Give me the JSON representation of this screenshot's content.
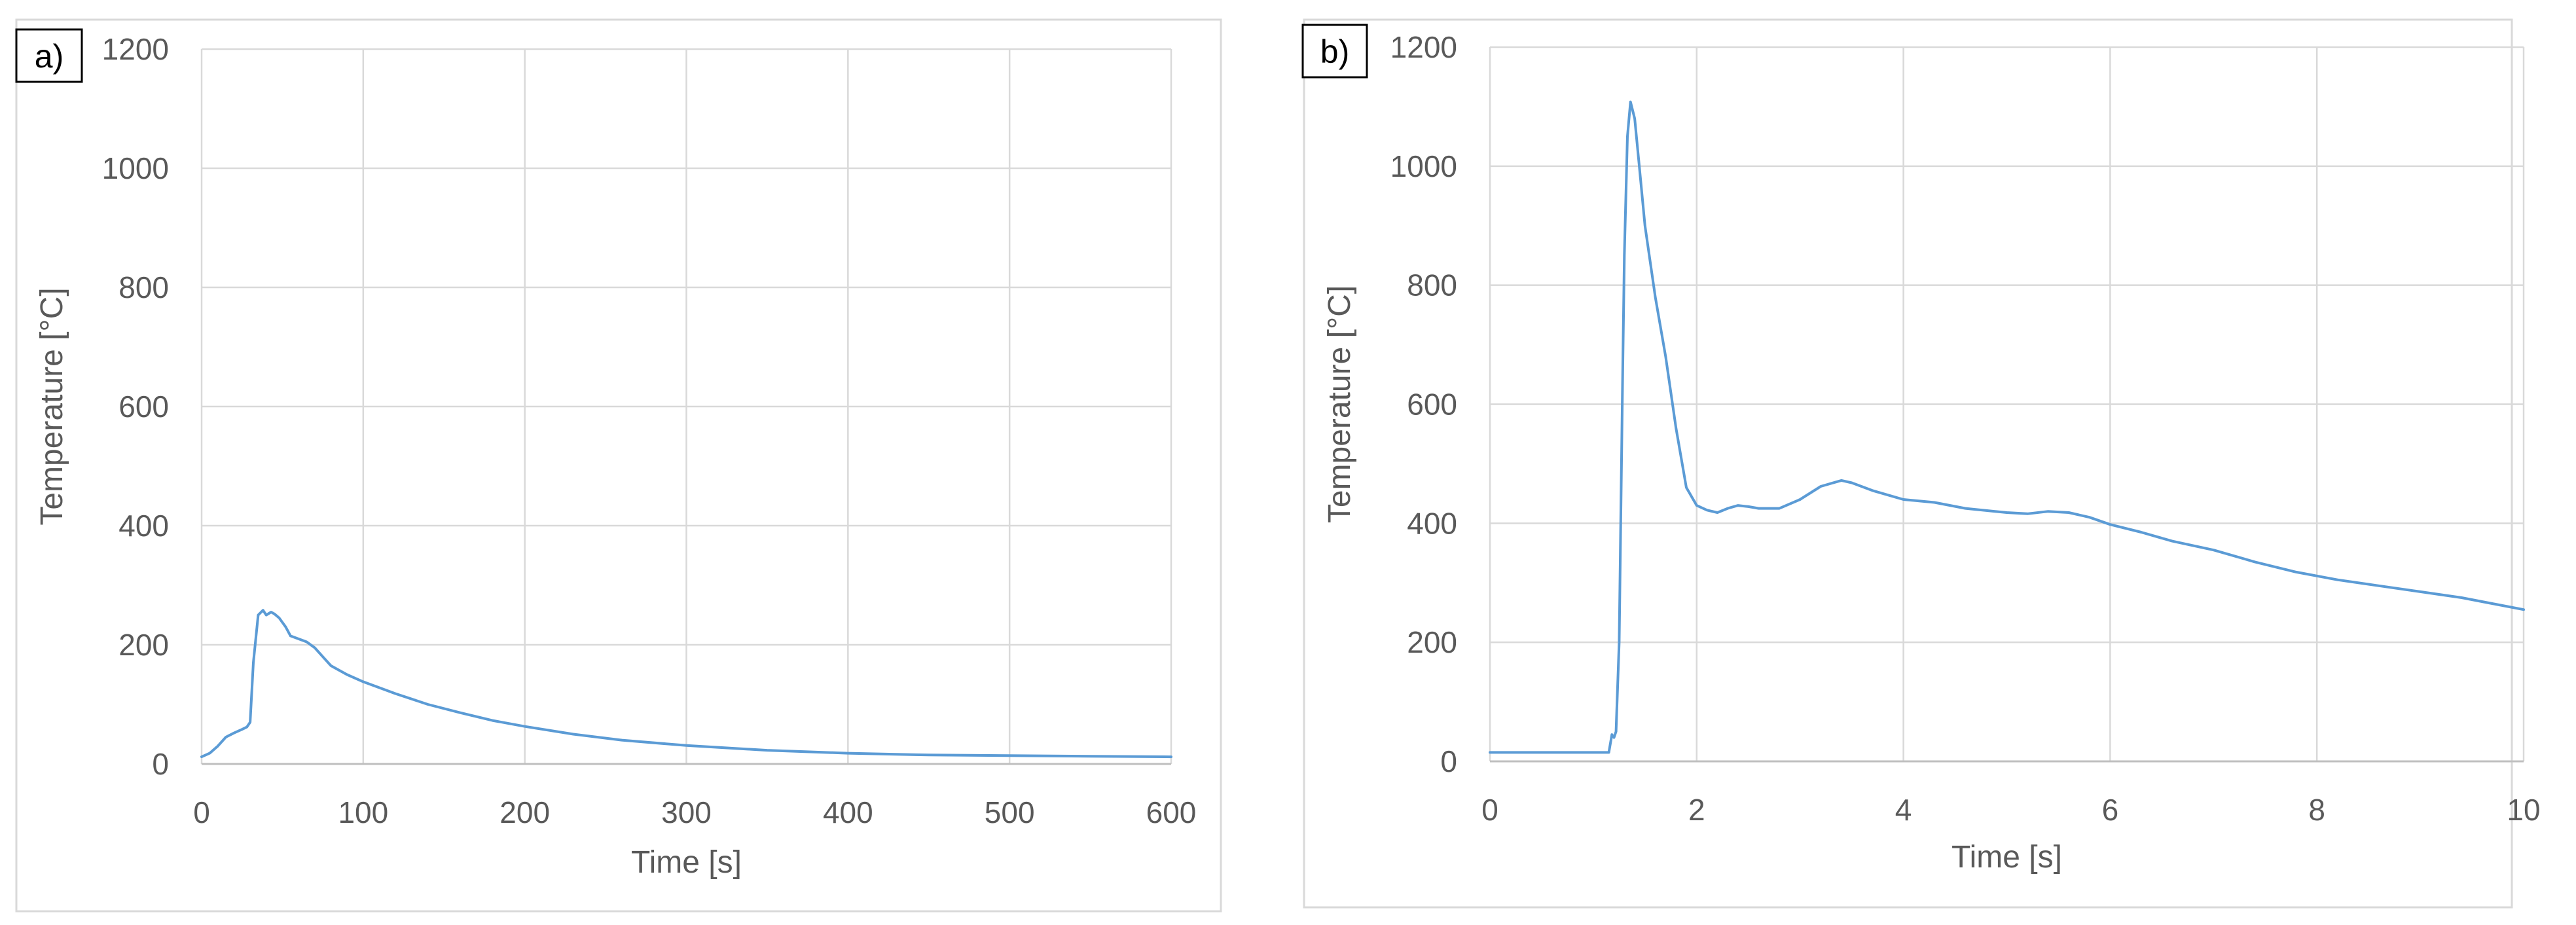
{
  "chart_data": [
    {
      "type": "line",
      "panel_label": "a)",
      "xlabel": "Time [s]",
      "ylabel": "Temperature [°C]",
      "xlim": [
        0,
        600
      ],
      "ylim": [
        0,
        1200
      ],
      "xticks": [
        0,
        100,
        200,
        300,
        400,
        500,
        600
      ],
      "yticks": [
        0,
        200,
        400,
        600,
        800,
        1000,
        1200
      ],
      "grid": true,
      "colors": {
        "series": "#5b9bd5"
      },
      "series": [
        {
          "x": [
            0,
            5,
            10,
            15,
            20,
            25,
            28,
            30,
            32,
            35,
            38,
            40,
            43,
            45,
            48,
            52,
            55,
            58,
            62,
            65,
            70,
            75,
            80,
            90,
            100,
            120,
            140,
            160,
            180,
            200,
            230,
            260,
            300,
            350,
            400,
            450,
            500,
            550,
            600
          ],
          "y": [
            12,
            18,
            30,
            45,
            52,
            58,
            62,
            70,
            170,
            250,
            258,
            250,
            255,
            252,
            245,
            230,
            215,
            212,
            208,
            205,
            195,
            180,
            165,
            150,
            138,
            118,
            100,
            86,
            73,
            63,
            50,
            40,
            31,
            23,
            18,
            15,
            14,
            13,
            12
          ]
        }
      ]
    },
    {
      "type": "line",
      "panel_label": "b)",
      "xlabel": "Time [s]",
      "ylabel": "Temperature [°C]",
      "xlim": [
        0,
        10
      ],
      "ylim": [
        0,
        1200
      ],
      "xticks": [
        0,
        2,
        4,
        6,
        8,
        10
      ],
      "yticks": [
        0,
        200,
        400,
        600,
        800,
        1000,
        1200
      ],
      "grid": true,
      "colors": {
        "series": "#5b9bd5"
      },
      "series": [
        {
          "x": [
            0,
            0.5,
            1.0,
            1.15,
            1.18,
            1.2,
            1.22,
            1.25,
            1.28,
            1.3,
            1.33,
            1.36,
            1.4,
            1.45,
            1.5,
            1.6,
            1.7,
            1.8,
            1.9,
            2.0,
            2.1,
            2.2,
            2.3,
            2.4,
            2.5,
            2.6,
            2.8,
            3.0,
            3.2,
            3.4,
            3.5,
            3.7,
            4.0,
            4.3,
            4.6,
            5.0,
            5.2,
            5.4,
            5.6,
            5.8,
            6.0,
            6.3,
            6.6,
            7.0,
            7.4,
            7.8,
            8.2,
            8.6,
            9.0,
            9.4,
            9.7,
            10.0
          ],
          "y": [
            15,
            15,
            15,
            15,
            45,
            40,
            50,
            200,
            600,
            850,
            1050,
            1108,
            1080,
            990,
            900,
            780,
            680,
            560,
            460,
            430,
            422,
            418,
            425,
            430,
            428,
            425,
            425,
            440,
            462,
            472,
            468,
            455,
            440,
            435,
            425,
            418,
            416,
            420,
            418,
            410,
            398,
            385,
            370,
            355,
            335,
            318,
            305,
            295,
            285,
            275,
            265,
            255
          ]
        }
      ]
    }
  ]
}
